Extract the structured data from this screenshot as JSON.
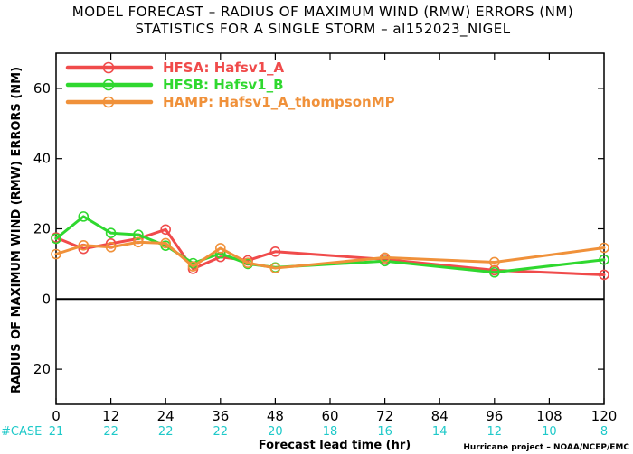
{
  "chart_data": {
    "type": "line",
    "title": "MODEL FORECAST – RADIUS OF MAXIMUM WIND (RMW) ERRORS (NM)",
    "subtitle": "STATISTICS FOR A SINGLE STORM – al152023_NIGEL",
    "xlabel": "Forecast lead time (hr)",
    "ylabel": "RADIUS OF MAXIMUM WIND (RMW) ERRORS (NM)",
    "xlim": [
      0,
      120
    ],
    "ylim": [
      -30,
      70
    ],
    "x_ticks": [
      0,
      12,
      24,
      36,
      48,
      60,
      72,
      84,
      96,
      108,
      120
    ],
    "y_ticks": [
      -20,
      0,
      20,
      40,
      60
    ],
    "y_tick_labels": [
      "20",
      "0",
      "20",
      "40",
      "60"
    ],
    "legend_position": "top-left",
    "series": [
      {
        "name": "HFSA: Hafsv1_A",
        "color": "#f04b4b",
        "x": [
          0,
          6,
          12,
          18,
          24,
          30,
          36,
          42,
          48,
          72,
          96,
          120
        ],
        "y": [
          17.5,
          14.3,
          15.8,
          17.2,
          19.8,
          8.6,
          12.0,
          11.0,
          13.5,
          11.3,
          8.2,
          6.9
        ]
      },
      {
        "name": "HFSB: Hafsv1_B",
        "color": "#2fd82f",
        "x": [
          0,
          6,
          12,
          18,
          24,
          30,
          36,
          42,
          48,
          72,
          96,
          120
        ],
        "y": [
          17.2,
          23.5,
          18.8,
          18.3,
          15.2,
          10.2,
          13.0,
          10.0,
          9.0,
          10.8,
          7.6,
          11.2
        ]
      },
      {
        "name": "HAMP: Hafsv1_A_thompsonMP",
        "color": "#f0913a",
        "x": [
          0,
          6,
          12,
          18,
          24,
          30,
          36,
          42,
          48,
          72,
          96,
          120
        ],
        "y": [
          12.8,
          15.3,
          14.8,
          16.2,
          15.9,
          9.3,
          14.5,
          10.3,
          8.8,
          11.8,
          10.5,
          14.6
        ]
      }
    ],
    "case_label": "#CASE",
    "cases": [
      {
        "x": 0,
        "count": "21"
      },
      {
        "x": 12,
        "count": "22"
      },
      {
        "x": 24,
        "count": "22"
      },
      {
        "x": 36,
        "count": "22"
      },
      {
        "x": 48,
        "count": "20"
      },
      {
        "x": 60,
        "count": "18"
      },
      {
        "x": 72,
        "count": "16"
      },
      {
        "x": 84,
        "count": "14"
      },
      {
        "x": 96,
        "count": "12"
      },
      {
        "x": 108,
        "count": "10"
      },
      {
        "x": 120,
        "count": "8"
      }
    ],
    "credit": "Hurricane project – NOAA/NCEP/EMC",
    "grid": false
  }
}
